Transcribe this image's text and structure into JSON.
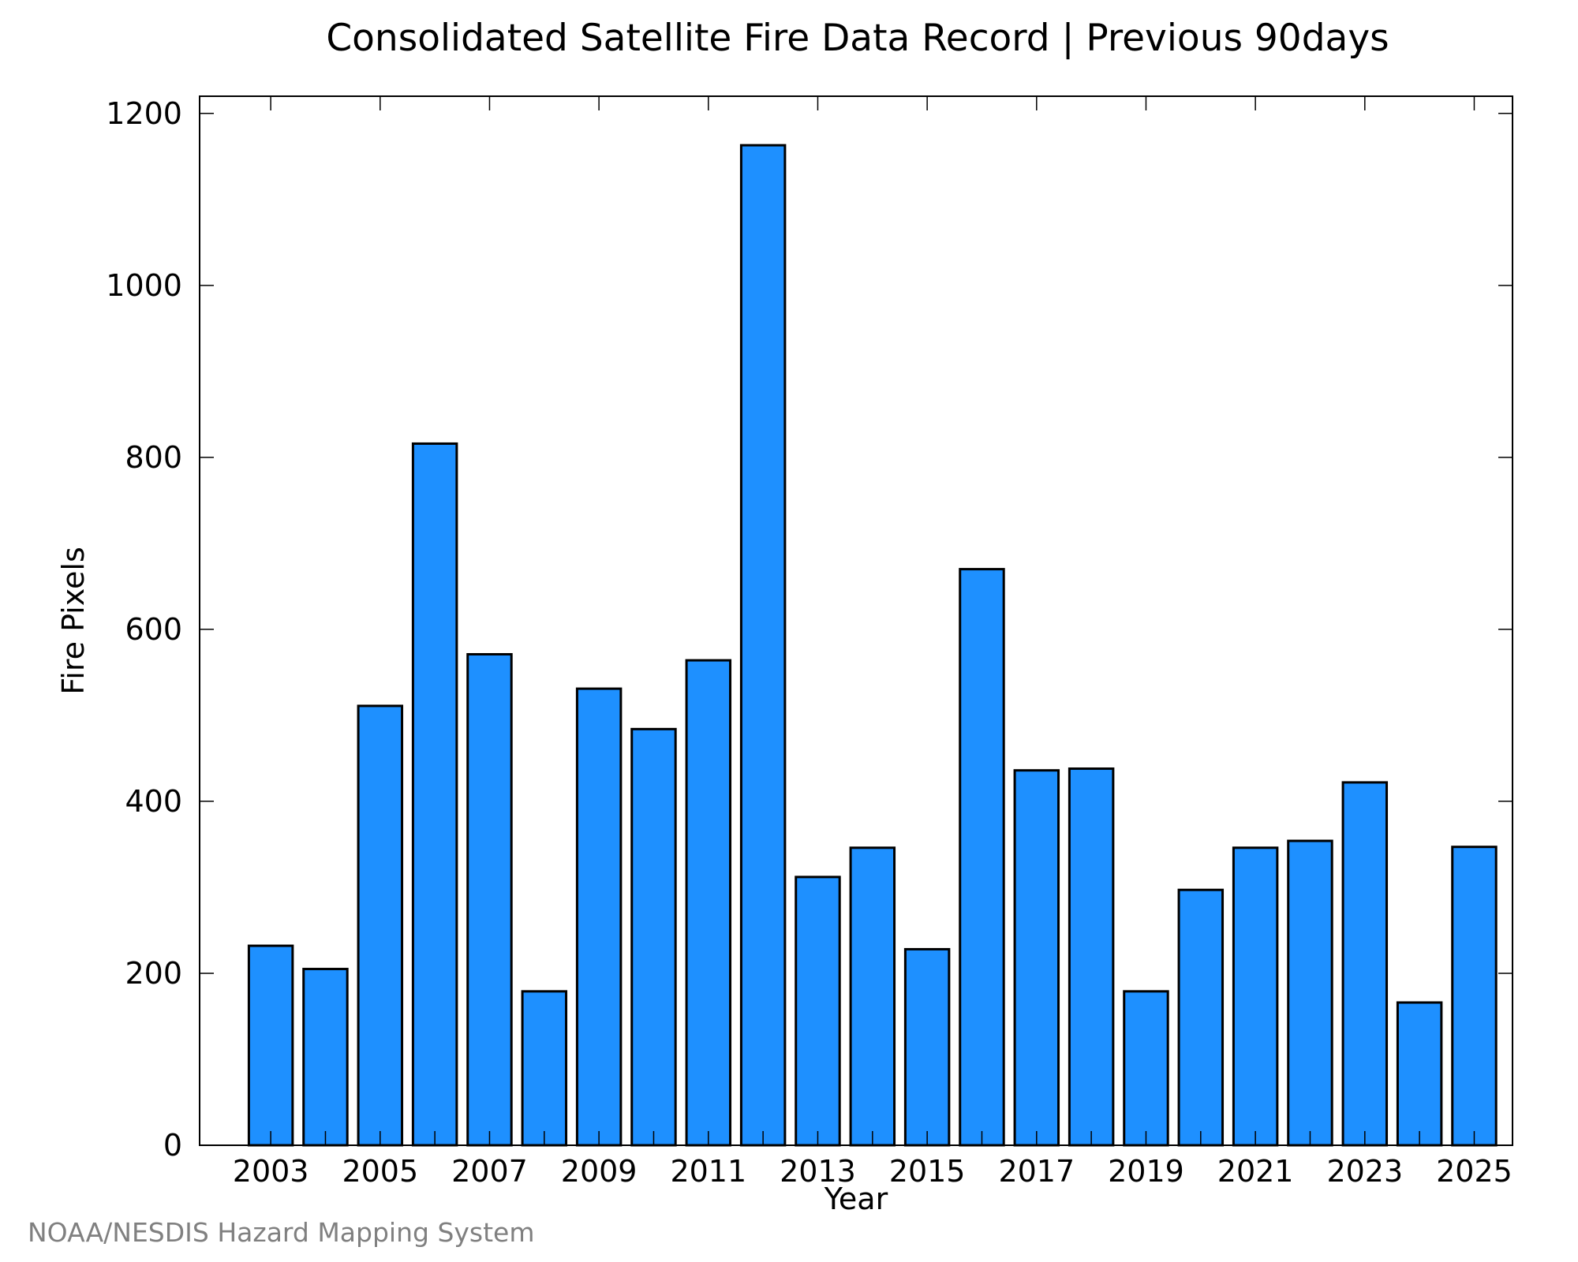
{
  "chart_data": {
    "type": "bar",
    "title": "Consolidated Satellite Fire Data Record | Previous 90days",
    "xlabel": "Year",
    "ylabel": "Fire Pixels",
    "ylim": [
      0,
      1220
    ],
    "xlim": [
      2001.7,
      2025.7
    ],
    "grid": false,
    "bar_color": "#1E90FF",
    "bar_edge_color": "#000000",
    "categories": [
      2003,
      2004,
      2005,
      2006,
      2007,
      2008,
      2009,
      2010,
      2011,
      2012,
      2013,
      2014,
      2015,
      2016,
      2017,
      2018,
      2019,
      2020,
      2021,
      2022,
      2023,
      2024,
      2025
    ],
    "values": [
      232,
      205,
      511,
      816,
      571,
      179,
      531,
      484,
      564,
      1163,
      312,
      346,
      228,
      670,
      436,
      438,
      179,
      297,
      346,
      354,
      422,
      166,
      347
    ],
    "x_ticks": [
      "2003",
      "2005",
      "2007",
      "2009",
      "2011",
      "2013",
      "2015",
      "2017",
      "2019",
      "2021",
      "2023",
      "2025"
    ],
    "y_ticks": [
      "0",
      "200",
      "400",
      "600",
      "800",
      "1000",
      "1200"
    ]
  },
  "footer": {
    "credit": "NOAA/NESDIS Hazard Mapping System"
  }
}
